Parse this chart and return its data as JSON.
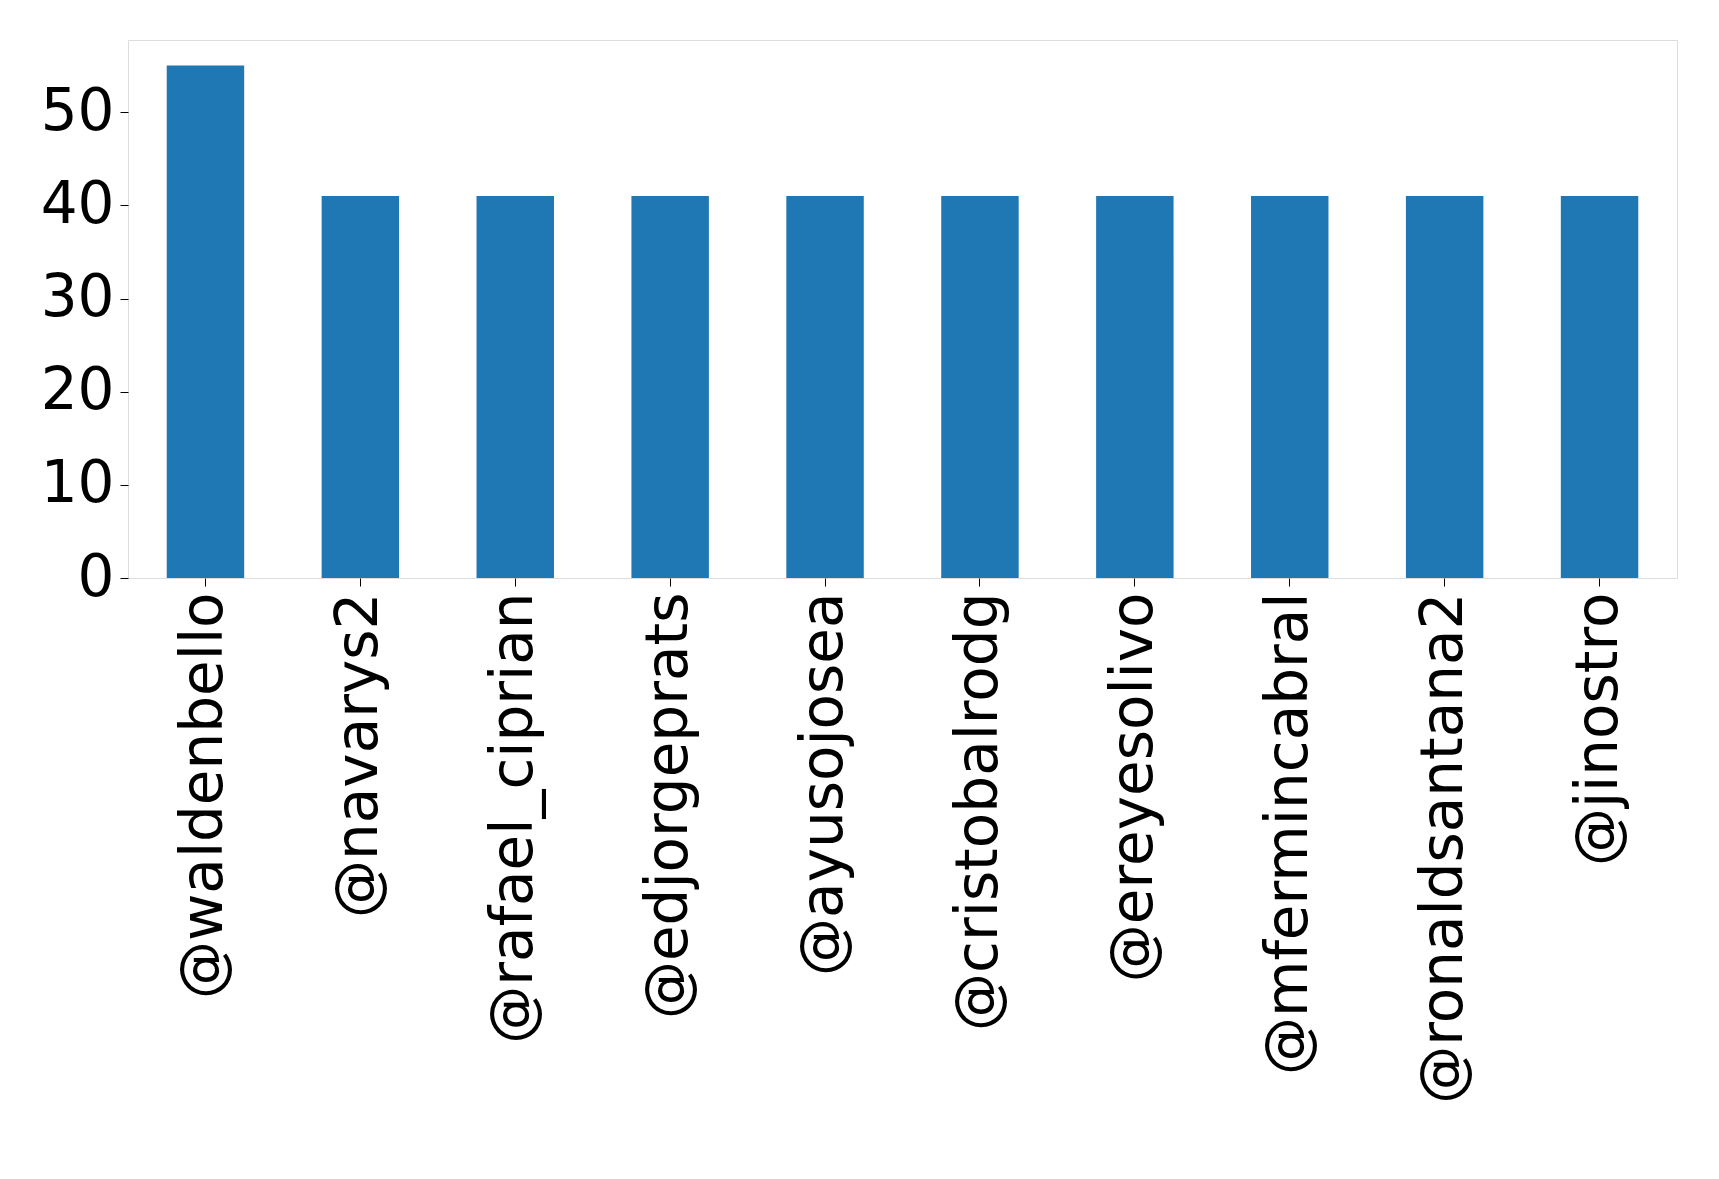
{
  "chart_data": {
    "type": "bar",
    "categories": [
      "@waldenbello",
      "@navarys2",
      "@rafael_ciprian",
      "@edjorgeprats",
      "@ayusojosea",
      "@cristobalrodg",
      "@ereyesolivo",
      "@mfermincabral",
      "@ronaldsantana2",
      "@jinostro"
    ],
    "values": [
      55,
      41,
      41,
      41,
      41,
      41,
      41,
      41,
      41,
      41
    ],
    "color": "#1f77b4",
    "ylim": [
      0,
      57.75
    ],
    "yticks": [
      0,
      10,
      20,
      30,
      40,
      50
    ],
    "grid": false
  }
}
